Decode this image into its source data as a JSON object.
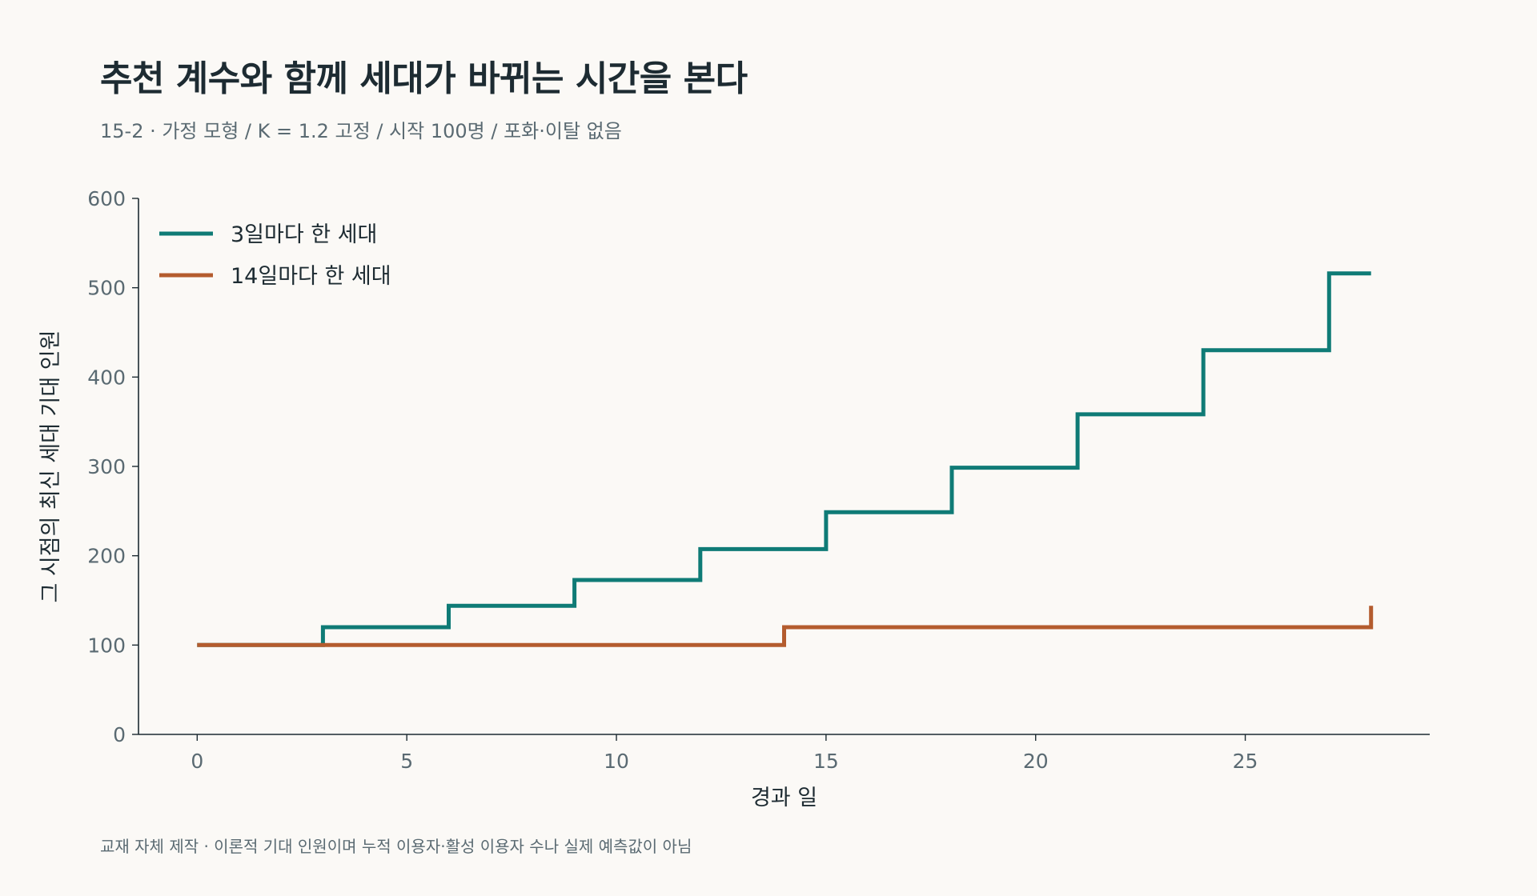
{
  "header": {
    "title": "추천 계수와 함께 세대가 바뀌는 시간을 본다",
    "subtitle": "15-2 · 가정 모형 / K = 1.2 고정 / 시작 100명 / 포화·이탈 없음"
  },
  "footnote": "교재 자체 제작 · 이론적 기대 인원이며 누적 이용자·활성 이용자 수나 실제 예측값이 아님",
  "chart_data": {
    "type": "line",
    "step": true,
    "title": "추천 계수와 함께 세대가 바뀌는 시간을 본다",
    "subtitle": "15-2 · 가정 모형 / K = 1.2 고정 / 시작 100명 / 포화·이탈 없음",
    "xlabel": "경과 일",
    "ylabel": "그 시점의 최신 세대 기대 인원",
    "xlim": [
      -1.4,
      29.4
    ],
    "ylim": [
      0,
      600
    ],
    "xticks": [
      0,
      5,
      10,
      15,
      20,
      25
    ],
    "yticks": [
      0,
      100,
      200,
      300,
      400,
      500,
      600
    ],
    "grid": false,
    "legend_position": "top-left",
    "series": [
      {
        "name": "3일마다 한 세대",
        "color": "#0f7b76",
        "x": [
          0,
          3,
          6,
          9,
          12,
          15,
          18,
          21,
          24,
          27,
          28
        ],
        "y": [
          100,
          120,
          144,
          172.8,
          207.4,
          248.8,
          298.6,
          358.3,
          430.0,
          516.0,
          516.0
        ]
      },
      {
        "name": "14일마다 한 세대",
        "color": "#b45c2e",
        "x": [
          0,
          14,
          28
        ],
        "y": [
          100,
          120,
          144
        ]
      }
    ]
  }
}
